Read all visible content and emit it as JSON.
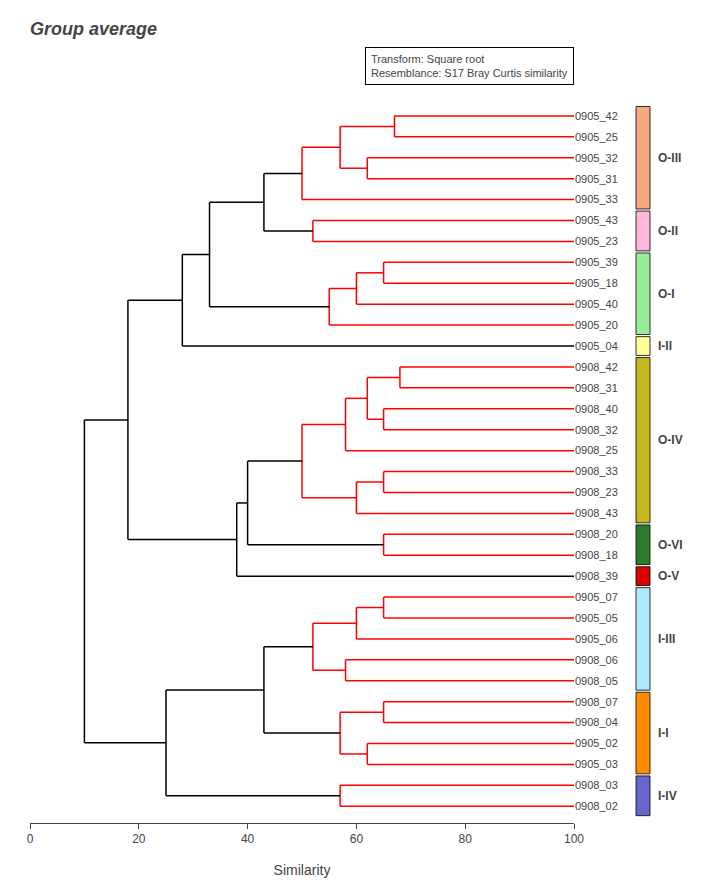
{
  "chart_data": {
    "type": "dendrogram",
    "title": "Group average",
    "annotation": "Transform: Square root\nResemblance: S17 Bray Curtis similarity",
    "xlabel": "Similarity",
    "xlim": [
      0,
      100
    ],
    "xticks": [
      0,
      20,
      40,
      60,
      80,
      100
    ],
    "ylim": [
      33.8,
      -1.0
    ],
    "grid": false,
    "leaf_similarity": 100,
    "categories": [
      "0905_42",
      "0905_25",
      "0905_32",
      "0905_31",
      "0905_33",
      "0905_43",
      "0905_23",
      "0905_39",
      "0905_18",
      "0905_40",
      "0905_20",
      "0905_04",
      "0908_42",
      "0908_31",
      "0908_40",
      "0908_32",
      "0908_25",
      "0908_33",
      "0908_23",
      "0908_43",
      "0908_20",
      "0908_18",
      "0908_39",
      "0905_07",
      "0905_05",
      "0905_06",
      "0908_06",
      "0908_05",
      "0908_07",
      "0908_04",
      "0905_02",
      "0905_03",
      "0908_03",
      "0908_02"
    ],
    "groups": [
      {
        "name": "O-III",
        "indices": [
          0,
          1,
          2,
          3,
          4
        ],
        "color": "#F4A97F"
      },
      {
        "name": "O-II",
        "indices": [
          5,
          6
        ],
        "color": "#FFB6D9"
      },
      {
        "name": "O-I",
        "indices": [
          7,
          8,
          9,
          10
        ],
        "color": "#98EE98"
      },
      {
        "name": "I-II",
        "indices": [
          11
        ],
        "color": "#FFFF99"
      },
      {
        "name": "O-IV",
        "indices": [
          12,
          13,
          14,
          15,
          16,
          17,
          18,
          19
        ],
        "color": "#C8B820"
      },
      {
        "name": "O-VI",
        "indices": [
          20,
          21
        ],
        "color": "#2D7A2D"
      },
      {
        "name": "O-V",
        "indices": [
          22
        ],
        "color": "#DD0000"
      },
      {
        "name": "I-III",
        "indices": [
          23,
          24,
          25,
          26,
          27
        ],
        "color": "#B0E8FF"
      },
      {
        "name": "I-I",
        "indices": [
          28,
          29,
          30,
          31
        ],
        "color": "#FF8C00"
      },
      {
        "name": "I-IV",
        "indices": [
          32,
          33
        ],
        "color": "#6666CC"
      }
    ],
    "merges": [
      {
        "y1": 0,
        "y2": 1,
        "similarity": 67.0,
        "color": "red"
      },
      {
        "y1": 2,
        "y2": 3,
        "similarity": 62.0,
        "color": "red"
      },
      {
        "y1": 0.5,
        "y2": 2.5,
        "similarity": 57.0,
        "color": "red"
      },
      {
        "y1": 1.5,
        "y2": 4,
        "similarity": 50.0,
        "color": "red"
      },
      {
        "y1": 5,
        "y2": 6,
        "similarity": 52.0,
        "color": "red"
      },
      {
        "y1": 2.75,
        "y2": 5.5,
        "similarity": 43.0,
        "color": "black"
      },
      {
        "y1": 7,
        "y2": 8,
        "similarity": 65.0,
        "color": "red"
      },
      {
        "y1": 7.5,
        "y2": 9,
        "similarity": 60.0,
        "color": "red"
      },
      {
        "y1": 8.25,
        "y2": 10,
        "similarity": 55.0,
        "color": "red"
      },
      {
        "y1": 4.125,
        "y2": 9.125,
        "similarity": 33.0,
        "color": "black"
      },
      {
        "y1": 6.625,
        "y2": 11,
        "similarity": 28.0,
        "color": "black"
      },
      {
        "y1": 12,
        "y2": 13,
        "similarity": 68.0,
        "color": "red"
      },
      {
        "y1": 14,
        "y2": 15,
        "similarity": 65.0,
        "color": "red"
      },
      {
        "y1": 12.5,
        "y2": 14.5,
        "similarity": 62.0,
        "color": "red"
      },
      {
        "y1": 13.5,
        "y2": 16,
        "similarity": 58.0,
        "color": "red"
      },
      {
        "y1": 17,
        "y2": 18,
        "similarity": 65.0,
        "color": "red"
      },
      {
        "y1": 17.5,
        "y2": 19,
        "similarity": 60.0,
        "color": "red"
      },
      {
        "y1": 14.75,
        "y2": 18.25,
        "similarity": 50.0,
        "color": "red"
      },
      {
        "y1": 20,
        "y2": 21,
        "similarity": 65.0,
        "color": "red"
      },
      {
        "y1": 16.5,
        "y2": 20.5,
        "similarity": 40.0,
        "color": "black"
      },
      {
        "y1": 18.5,
        "y2": 22,
        "similarity": 38.0,
        "color": "black"
      },
      {
        "y1": 23,
        "y2": 24,
        "similarity": 65.0,
        "color": "red"
      },
      {
        "y1": 23.5,
        "y2": 25,
        "similarity": 60.0,
        "color": "red"
      },
      {
        "y1": 26,
        "y2": 27,
        "similarity": 58.0,
        "color": "red"
      },
      {
        "y1": 24.25,
        "y2": 26.5,
        "similarity": 52.0,
        "color": "red"
      },
      {
        "y1": 28,
        "y2": 29,
        "similarity": 65.0,
        "color": "red"
      },
      {
        "y1": 30,
        "y2": 31,
        "similarity": 62.0,
        "color": "red"
      },
      {
        "y1": 28.5,
        "y2": 30.5,
        "similarity": 57.0,
        "color": "red"
      },
      {
        "y1": 25.375,
        "y2": 29.5,
        "similarity": 43.0,
        "color": "black"
      },
      {
        "y1": 32,
        "y2": 33,
        "similarity": 57.0,
        "color": "red"
      },
      {
        "y1": 27.4375,
        "y2": 32.5,
        "similarity": 25.0,
        "color": "black"
      },
      {
        "y1": 8.8125,
        "y2": 20.25,
        "similarity": 18.0,
        "color": "black"
      },
      {
        "y1": 14.53125,
        "y2": 29.96875,
        "similarity": 10.0,
        "color": "black"
      }
    ]
  }
}
